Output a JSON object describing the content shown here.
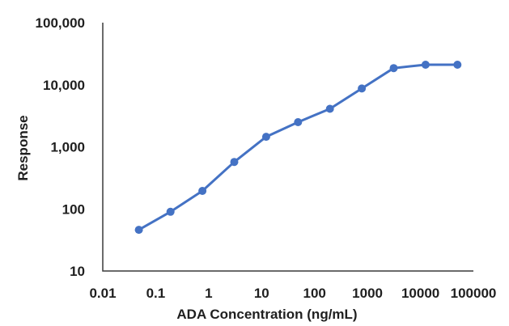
{
  "chart_data": {
    "type": "line",
    "title": "",
    "xlabel": "ADA Concentration (ng/mL)",
    "ylabel": "Response",
    "x_scale": "log",
    "y_scale": "log",
    "xlim": [
      0.01,
      100000
    ],
    "ylim": [
      10,
      100000
    ],
    "x_tick_labels": [
      "0.01",
      "0.1",
      "1",
      "10",
      "100",
      "1000",
      "10000",
      "100000"
    ],
    "y_tick_labels": [
      "10",
      "100",
      "1,000",
      "10,000",
      "100,000"
    ],
    "grid": false,
    "legend": false,
    "line_color": "#4472C4",
    "axis_color": "#3a3a3a",
    "text_color": "#1f1f1f",
    "series": [
      {
        "x": [
          0.048,
          0.19,
          0.76,
          3.05,
          12.2,
          48.8,
          195,
          781,
          3125,
          12500,
          50000
        ],
        "y": [
          46,
          90,
          195,
          570,
          1450,
          2500,
          4100,
          8700,
          18500,
          21000,
          21000
        ],
        "color": "#4472C4",
        "marker": "circle"
      }
    ]
  }
}
